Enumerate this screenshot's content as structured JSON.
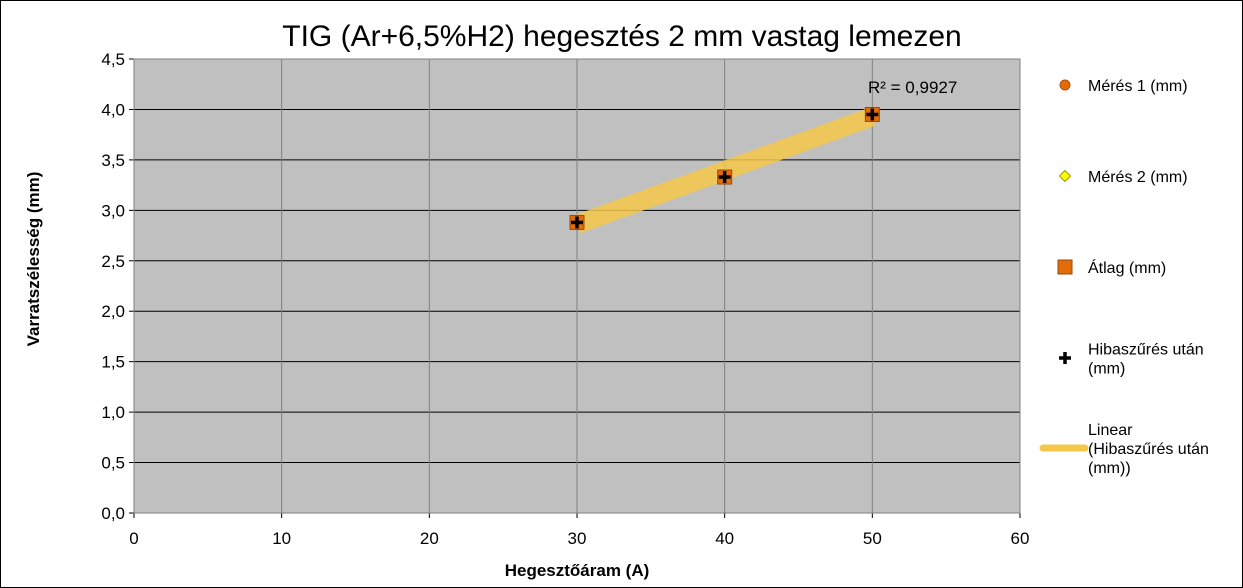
{
  "chart_data": {
    "type": "scatter",
    "title": "TIG (Ar+6,5%H2) hegesztés 2 mm vastag lemezen",
    "xlabel": "Hegesztőáram (A)",
    "ylabel": "Varratszélesség (mm)",
    "xlim": [
      0,
      60
    ],
    "ylim": [
      0,
      4.5
    ],
    "x_ticks": [
      "0",
      "10",
      "20",
      "30",
      "40",
      "50",
      "60"
    ],
    "y_ticks": [
      "0,0",
      "0,5",
      "1,0",
      "1,5",
      "2,0",
      "2,5",
      "3,0",
      "3,5",
      "4,0",
      "4,5"
    ],
    "grid": true,
    "legend_position": "right",
    "plot_background": "#c0c0c0",
    "series": [
      {
        "name": "Mérés 1 (mm)",
        "marker": "circle",
        "color": "#e26b0a",
        "x": [
          30,
          40,
          50
        ],
        "y": [
          2.88,
          3.33,
          3.95
        ]
      },
      {
        "name": "Mérés 2 (mm)",
        "marker": "diamond",
        "color": "#ffff00",
        "x": [
          30,
          40,
          50
        ],
        "y": [
          2.88,
          3.33,
          3.95
        ]
      },
      {
        "name": "Átlag (mm)",
        "marker": "square",
        "color": "#e26b0a",
        "x": [
          30,
          40,
          50
        ],
        "y": [
          2.88,
          3.33,
          3.95
        ]
      },
      {
        "name": "Hibaszűrés után (mm)",
        "marker": "plus",
        "color": "#000000",
        "x": [
          30,
          40,
          50
        ],
        "y": [
          2.88,
          3.33,
          3.95
        ]
      }
    ],
    "trendline": {
      "name": "Linear (Hibaszűrés után (mm))",
      "type": "linear",
      "color": "#f5c74a",
      "x": [
        30,
        50
      ],
      "y": [
        2.86,
        3.93
      ],
      "r_squared_label": "R² = 0,9927"
    }
  }
}
